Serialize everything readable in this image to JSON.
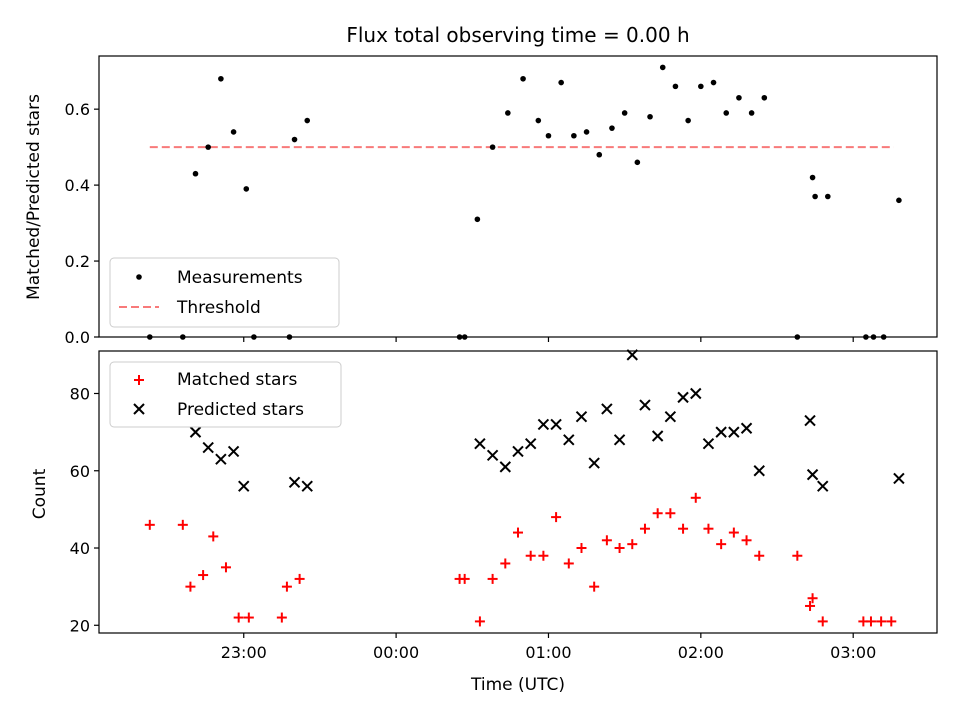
{
  "chart_data": [
    {
      "type": "scatter",
      "title": "Flux total observing time = 0.00 h",
      "ylabel": "Matched/Predicted stars",
      "xlabel": "",
      "x_unit": "hours (UTC, continuing past midnight)",
      "xlim": [
        22.05,
        3.55
      ],
      "ylim": [
        0.0,
        0.74
      ],
      "yticks": [
        0.0,
        0.2,
        0.4,
        0.6
      ],
      "ytick_labels": [
        "0.0",
        "0.2",
        "0.4",
        "0.6"
      ],
      "grid": false,
      "legend_location": "lower left",
      "series": [
        {
          "name": "Measurements",
          "marker": "dot",
          "color": "#000000",
          "points": [
            [
              "22:23",
              0.0
            ],
            [
              "22:36",
              0.0
            ],
            [
              "22:41",
              0.43
            ],
            [
              "22:46",
              0.5
            ],
            [
              "22:51",
              0.68
            ],
            [
              "22:56",
              0.54
            ],
            [
              "23:01",
              0.39
            ],
            [
              "23:04",
              0.0
            ],
            [
              "23:18",
              0.0
            ],
            [
              "23:20",
              0.52
            ],
            [
              "23:25",
              0.57
            ],
            [
              "00:25",
              0.0
            ],
            [
              "00:27",
              0.0
            ],
            [
              "00:32",
              0.31
            ],
            [
              "00:38",
              0.5
            ],
            [
              "00:44",
              0.59
            ],
            [
              "00:50",
              0.68
            ],
            [
              "00:56",
              0.57
            ],
            [
              "01:00",
              0.53
            ],
            [
              "01:05",
              0.67
            ],
            [
              "01:10",
              0.53
            ],
            [
              "01:15",
              0.54
            ],
            [
              "01:20",
              0.48
            ],
            [
              "01:25",
              0.55
            ],
            [
              "01:30",
              0.59
            ],
            [
              "01:35",
              0.46
            ],
            [
              "01:40",
              0.58
            ],
            [
              "01:45",
              0.71
            ],
            [
              "01:50",
              0.66
            ],
            [
              "01:55",
              0.57
            ],
            [
              "02:00",
              0.66
            ],
            [
              "02:05",
              0.67
            ],
            [
              "02:10",
              0.59
            ],
            [
              "02:15",
              0.63
            ],
            [
              "02:20",
              0.59
            ],
            [
              "02:25",
              0.63
            ],
            [
              "02:38",
              0.0
            ],
            [
              "02:44",
              0.42
            ],
            [
              "02:45",
              0.37
            ],
            [
              "02:50",
              0.37
            ],
            [
              "03:05",
              0.0
            ],
            [
              "03:08",
              0.0
            ],
            [
              "03:12",
              0.0
            ],
            [
              "03:18",
              0.36
            ]
          ]
        },
        {
          "name": "Threshold",
          "style": "dashed line",
          "color": "#f87a7a",
          "y": 0.5,
          "x_range": [
            "22:23",
            "03:16"
          ]
        }
      ]
    },
    {
      "type": "scatter",
      "title": "",
      "xlabel": "Time (UTC)",
      "ylabel": "Count",
      "xlim": [
        22.05,
        3.55
      ],
      "ylim": [
        18,
        91
      ],
      "xticks": [
        "23:00",
        "00:00",
        "01:00",
        "02:00",
        "03:00"
      ],
      "yticks": [
        20,
        40,
        60,
        80
      ],
      "ytick_labels": [
        "20",
        "40",
        "60",
        "80"
      ],
      "grid": false,
      "legend_location": "upper left",
      "series": [
        {
          "name": "Matched stars",
          "marker": "plus",
          "color": "#ff0000",
          "points": [
            [
              "22:23",
              46
            ],
            [
              "22:36",
              46
            ],
            [
              "22:39",
              30
            ],
            [
              "22:44",
              33
            ],
            [
              "22:48",
              43
            ],
            [
              "22:53",
              35
            ],
            [
              "22:58",
              22
            ],
            [
              "23:02",
              22
            ],
            [
              "23:15",
              22
            ],
            [
              "23:17",
              30
            ],
            [
              "23:22",
              32
            ],
            [
              "00:25",
              32
            ],
            [
              "00:27",
              32
            ],
            [
              "00:33",
              21
            ],
            [
              "00:38",
              32
            ],
            [
              "00:43",
              36
            ],
            [
              "00:48",
              44
            ],
            [
              "00:53",
              38
            ],
            [
              "00:58",
              38
            ],
            [
              "01:03",
              48
            ],
            [
              "01:08",
              36
            ],
            [
              "01:13",
              40
            ],
            [
              "01:18",
              30
            ],
            [
              "01:23",
              42
            ],
            [
              "01:28",
              40
            ],
            [
              "01:33",
              41
            ],
            [
              "01:38",
              45
            ],
            [
              "01:43",
              49
            ],
            [
              "01:48",
              49
            ],
            [
              "01:53",
              45
            ],
            [
              "01:58",
              53
            ],
            [
              "02:03",
              45
            ],
            [
              "02:08",
              41
            ],
            [
              "02:13",
              44
            ],
            [
              "02:18",
              42
            ],
            [
              "02:23",
              38
            ],
            [
              "02:38",
              38
            ],
            [
              "02:43",
              25
            ],
            [
              "02:44",
              27
            ],
            [
              "02:48",
              21
            ],
            [
              "03:04",
              21
            ],
            [
              "03:07",
              21
            ],
            [
              "03:11",
              21
            ],
            [
              "03:15",
              21
            ]
          ]
        },
        {
          "name": "Predicted stars",
          "marker": "x",
          "color": "#000000",
          "points": [
            [
              "22:41",
              70
            ],
            [
              "22:46",
              66
            ],
            [
              "22:51",
              63
            ],
            [
              "22:56",
              65
            ],
            [
              "23:00",
              56
            ],
            [
              "23:20",
              57
            ],
            [
              "23:25",
              56
            ],
            [
              "00:33",
              67
            ],
            [
              "00:38",
              64
            ],
            [
              "00:43",
              61
            ],
            [
              "00:48",
              65
            ],
            [
              "00:53",
              67
            ],
            [
              "00:58",
              72
            ],
            [
              "01:03",
              72
            ],
            [
              "01:08",
              68
            ],
            [
              "01:13",
              74
            ],
            [
              "01:18",
              62
            ],
            [
              "01:23",
              76
            ],
            [
              "01:28",
              68
            ],
            [
              "01:33",
              90
            ],
            [
              "01:38",
              77
            ],
            [
              "01:43",
              69
            ],
            [
              "01:48",
              74
            ],
            [
              "01:53",
              79
            ],
            [
              "01:58",
              80
            ],
            [
              "02:03",
              67
            ],
            [
              "02:08",
              70
            ],
            [
              "02:13",
              70
            ],
            [
              "02:18",
              71
            ],
            [
              "02:23",
              60
            ],
            [
              "02:43",
              73
            ],
            [
              "02:44",
              59
            ],
            [
              "02:48",
              56
            ],
            [
              "03:18",
              58
            ]
          ]
        }
      ]
    }
  ]
}
